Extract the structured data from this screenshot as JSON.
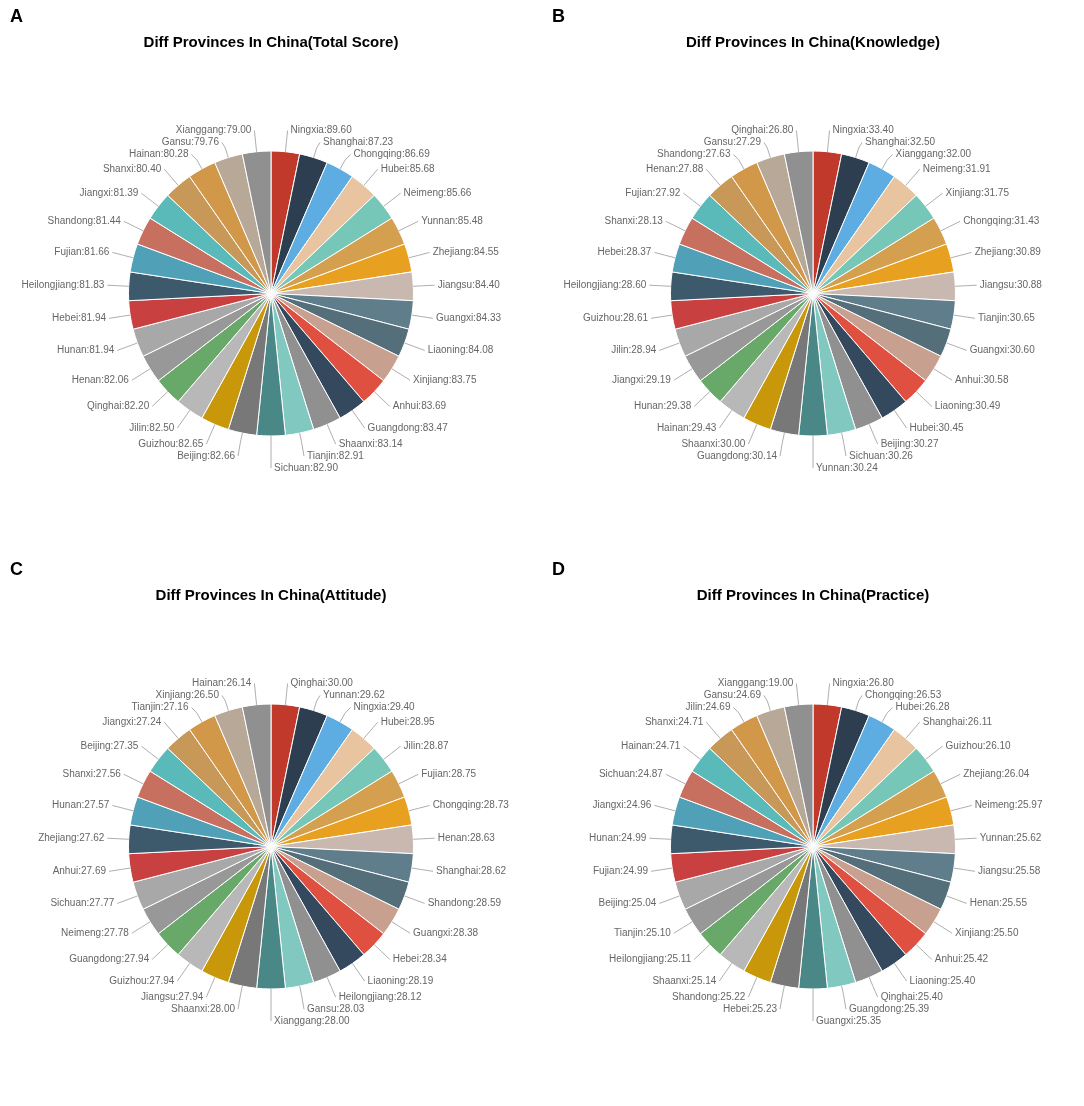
{
  "chart_data": [
    {
      "type": "pie",
      "title": "Diff Provinces In China(Total Score)",
      "annotations": [
        "A"
      ],
      "categories": [
        "Ningxia",
        "Shanghai",
        "Chongqing",
        "Hubei",
        "Neimeng",
        "Yunnan",
        "Zhejiang",
        "Jiangsu",
        "Guangxi",
        "Liaoning",
        "Xinjiang",
        "Anhui",
        "Guangdong",
        "Shaanxi",
        "Tianjin",
        "Sichuan",
        "Beijing",
        "Guizhou",
        "Jilin",
        "Qinghai",
        "Henan",
        "Hunan",
        "Hebei",
        "Heilongjiang",
        "Fujian",
        "Shandong",
        "Jiangxi",
        "Shanxi",
        "Hainan",
        "Gansu",
        "Xianggang"
      ],
      "values": [
        89.6,
        87.23,
        86.69,
        85.68,
        85.66,
        85.48,
        84.55,
        84.4,
        84.33,
        84.08,
        83.75,
        83.69,
        83.47,
        83.14,
        82.91,
        82.9,
        82.66,
        82.65,
        82.5,
        82.2,
        82.06,
        81.94,
        81.94,
        81.83,
        81.66,
        81.44,
        81.39,
        80.4,
        80.28,
        79.76,
        79.0
      ],
      "value_labels": [
        "Ningxia:89.60",
        "Shanghai:87.23",
        "Chongqing:86.69",
        "Hubei:85.68",
        "Neimeng:85.66",
        "Yunnan:85.48",
        "Zhejiang:84.55",
        "Jiangsu:84.40",
        "Guangxi:84.33",
        "Liaoning:84.08",
        "Xinjiang:83.75",
        "Anhui:83.69",
        "Guangdong:83.47",
        "Shaanxi:83.14",
        "Tianjin:82.91",
        "Sichuan:82.90",
        "Beijing:82.66",
        "Guizhou:82.65",
        "Jilin:82.50",
        "Qinghai:82.20",
        "Henan:82.06",
        "Hunan:81.94",
        "Hebei:81.94",
        "Heilongjiang:81.83",
        "Fujian:81.66",
        "Shandong:81.44",
        "Jiangxi:81.39",
        "Shanxi:80.40",
        "Hainan:80.28",
        "Gansu:79.76",
        "Xianggang:79.00"
      ],
      "data_labels": true,
      "colors": [
        "#C0392B",
        "#2C3E50",
        "#5DADE2",
        "#E8C4A0",
        "#76C7B7",
        "#D4A050",
        "#E8A020",
        "#C8B8B0",
        "#607D8B",
        "#546E7A",
        "#C8A090",
        "#E05040",
        "#34495E",
        "#909090",
        "#80C8C0",
        "#4A8888",
        "#787878",
        "#C8980A",
        "#B8B8B8",
        "#68A868",
        "#989898",
        "#A8A8A8",
        "#C84040",
        "#3D5A6C",
        "#50A0B8",
        "#C87060",
        "#5ABABA",
        "#C89858",
        "#D09848",
        "#B8A898",
        "#909090"
      ],
      "legend": false
    },
    {
      "type": "pie",
      "title": "Diff Provinces In China(Knowledge)",
      "annotations": [
        "B"
      ],
      "categories": [
        "Ningxia",
        "Shanghai",
        "Xianggang",
        "Neimeng",
        "Xinjiang",
        "Chongqing",
        "Zhejiang",
        "Jiangsu",
        "Tianjin",
        "Guangxi",
        "Anhui",
        "Liaoning",
        "Hubei",
        "Beijing",
        "Sichuan",
        "Yunnan",
        "Guangdong",
        "Shaanxi",
        "Hainan",
        "Hunan",
        "Jiangxi",
        "Jilin",
        "Guizhou",
        "Heilongjiang",
        "Hebei",
        "Shanxi",
        "Fujian",
        "Henan",
        "Shandong",
        "Gansu",
        "Qinghai"
      ],
      "values": [
        33.4,
        32.5,
        32.0,
        31.91,
        31.75,
        31.43,
        30.89,
        30.88,
        30.65,
        30.6,
        30.58,
        30.49,
        30.45,
        30.27,
        30.26,
        30.24,
        30.14,
        30.0,
        29.43,
        29.38,
        29.19,
        28.94,
        28.61,
        28.6,
        28.37,
        28.13,
        27.92,
        27.88,
        27.63,
        27.29,
        26.8
      ],
      "value_labels": [
        "Ningxia:33.40",
        "Shanghai:32.50",
        "Xianggang:32.00",
        "Neimeng:31.91",
        "Xinjiang:31.75",
        "Chongqing:31.43",
        "Zhejiang:30.89",
        "Jiangsu:30.88",
        "Tianjin:30.65",
        "Guangxi:30.60",
        "Anhui:30.58",
        "Liaoning:30.49",
        "Hubei:30.45",
        "Beijing:30.27",
        "Sichuan:30.26",
        "Yunnan:30.24",
        "Guangdong:30.14",
        "Shaanxi:30.00",
        "Hainan:29.43",
        "Hunan:29.38",
        "Jiangxi:29.19",
        "Jilin:28.94",
        "Guizhou:28.61",
        "Heilongjiang:28.60",
        "Hebei:28.37",
        "Shanxi:28.13",
        "Fujian:27.92",
        "Henan:27.88",
        "Shandong:27.63",
        "Gansu:27.29",
        "Qinghai:26.80"
      ],
      "data_labels": true,
      "colors": [
        "#C0392B",
        "#2C3E50",
        "#5DADE2",
        "#E8C4A0",
        "#76C7B7",
        "#D4A050",
        "#E8A020",
        "#C8B8B0",
        "#607D8B",
        "#546E7A",
        "#C8A090",
        "#E05040",
        "#34495E",
        "#909090",
        "#80C8C0",
        "#4A8888",
        "#787878",
        "#C8980A",
        "#B8B8B8",
        "#68A868",
        "#989898",
        "#A8A8A8",
        "#C84040",
        "#3D5A6C",
        "#50A0B8",
        "#C87060",
        "#5ABABA",
        "#C89858",
        "#D09848",
        "#B8A898",
        "#909090"
      ],
      "legend": false
    },
    {
      "type": "pie",
      "title": "Diff Provinces In China(Attitude)",
      "annotations": [
        "C"
      ],
      "categories": [
        "Qinghai",
        "Yunnan",
        "Ningxia",
        "Hubei",
        "Jilin",
        "Fujian",
        "Chongqing",
        "Henan",
        "Shanghai",
        "Shandong",
        "Guangxi",
        "Hebei",
        "Liaoning",
        "Heilongjiang",
        "Gansu",
        "Xianggang",
        "Shaanxi",
        "Jiangsu",
        "Guizhou",
        "Guangdong",
        "Neimeng",
        "Sichuan",
        "Anhui",
        "Zhejiang",
        "Hunan",
        "Shanxi",
        "Beijing",
        "Jiangxi",
        "Tianjin",
        "Xinjiang",
        "Hainan"
      ],
      "values": [
        30.0,
        29.62,
        29.4,
        28.95,
        28.87,
        28.75,
        28.73,
        28.63,
        28.62,
        28.59,
        28.38,
        28.34,
        28.19,
        28.12,
        28.03,
        28.0,
        28.0,
        27.94,
        27.94,
        27.94,
        27.78,
        27.77,
        27.69,
        27.62,
        27.57,
        27.56,
        27.35,
        27.24,
        27.16,
        26.5,
        26.14
      ],
      "value_labels": [
        "Qinghai:30.00",
        "Yunnan:29.62",
        "Ningxia:29.40",
        "Hubei:28.95",
        "Jilin:28.87",
        "Fujian:28.75",
        "Chongqing:28.73",
        "Henan:28.63",
        "Shanghai:28.62",
        "Shandong:28.59",
        "Guangxi:28.38",
        "Hebei:28.34",
        "Liaoning:28.19",
        "Heilongjiang:28.12",
        "Gansu:28.03",
        "Xianggang:28.00",
        "Shaanxi:28.00",
        "Jiangsu:27.94",
        "Guizhou:27.94",
        "Guangdong:27.94",
        "Neimeng:27.78",
        "Sichuan:27.77",
        "Anhui:27.69",
        "Zhejiang:27.62",
        "Hunan:27.57",
        "Shanxi:27.56",
        "Beijing:27.35",
        "Jiangxi:27.24",
        "Tianjin:27.16",
        "Xinjiang:26.50",
        "Hainan:26.14"
      ],
      "data_labels": true,
      "colors": [
        "#C0392B",
        "#2C3E50",
        "#5DADE2",
        "#E8C4A0",
        "#76C7B7",
        "#D4A050",
        "#E8A020",
        "#C8B8B0",
        "#607D8B",
        "#546E7A",
        "#C8A090",
        "#E05040",
        "#34495E",
        "#909090",
        "#80C8C0",
        "#4A8888",
        "#787878",
        "#C8980A",
        "#B8B8B8",
        "#68A868",
        "#989898",
        "#A8A8A8",
        "#C84040",
        "#3D5A6C",
        "#50A0B8",
        "#C87060",
        "#5ABABA",
        "#C89858",
        "#D09848",
        "#B8A898",
        "#909090"
      ],
      "legend": false
    },
    {
      "type": "pie",
      "title": "Diff Provinces In China(Practice)",
      "annotations": [
        "D"
      ],
      "categories": [
        "Ningxia",
        "Chongqing",
        "Hubei",
        "Shanghai",
        "Guizhou",
        "Zhejiang",
        "Neimeng",
        "Yunnan",
        "Jiangsu",
        "Henan",
        "Xinjiang",
        "Anhui",
        "Liaoning",
        "Qinghai",
        "Guangdong",
        "Guangxi",
        "Hebei",
        "Shandong",
        "Shaanxi",
        "Heilongjiang",
        "Tianjin",
        "Beijing",
        "Fujian",
        "Hunan",
        "Jiangxi",
        "Sichuan",
        "Hainan",
        "Shanxi",
        "Jilin",
        "Gansu",
        "Xianggang"
      ],
      "values": [
        26.8,
        26.53,
        26.28,
        26.11,
        26.1,
        26.04,
        25.97,
        25.62,
        25.58,
        25.55,
        25.5,
        25.42,
        25.4,
        25.4,
        25.39,
        25.35,
        25.23,
        25.22,
        25.14,
        25.11,
        25.1,
        25.04,
        24.99,
        24.99,
        24.96,
        24.87,
        24.71,
        24.71,
        24.69,
        24.69,
        19.0
      ],
      "value_labels": [
        "Ningxia:26.80",
        "Chongqing:26.53",
        "Hubei:26.28",
        "Shanghai:26.11",
        "Guizhou:26.10",
        "Zhejiang:26.04",
        "Neimeng:25.97",
        "Yunnan:25.62",
        "Jiangsu:25.58",
        "Henan:25.55",
        "Xinjiang:25.50",
        "Anhui:25.42",
        "Liaoning:25.40",
        "Qinghai:25.40",
        "Guangdong:25.39",
        "Guangxi:25.35",
        "Hebei:25.23",
        "Shandong:25.22",
        "Shaanxi:25.14",
        "Heilongjiang:25.11",
        "Tianjin:25.10",
        "Beijing:25.04",
        "Fujian:24.99",
        "Hunan:24.99",
        "Jiangxi:24.96",
        "Sichuan:24.87",
        "Hainan:24.71",
        "Shanxi:24.71",
        "Jilin:24.69",
        "Gansu:24.69",
        "Xianggang:19.00"
      ],
      "data_labels": true,
      "colors": [
        "#C0392B",
        "#2C3E50",
        "#5DADE2",
        "#E8C4A0",
        "#76C7B7",
        "#D4A050",
        "#E8A020",
        "#C8B8B0",
        "#607D8B",
        "#546E7A",
        "#C8A090",
        "#E05040",
        "#34495E",
        "#909090",
        "#80C8C0",
        "#4A8888",
        "#787878",
        "#C8980A",
        "#B8B8B8",
        "#68A868",
        "#989898",
        "#A8A8A8",
        "#C84040",
        "#3D5A6C",
        "#50A0B8",
        "#C87060",
        "#5ABABA",
        "#C89858",
        "#D09848",
        "#B8A898",
        "#909090"
      ],
      "legend": false
    }
  ]
}
